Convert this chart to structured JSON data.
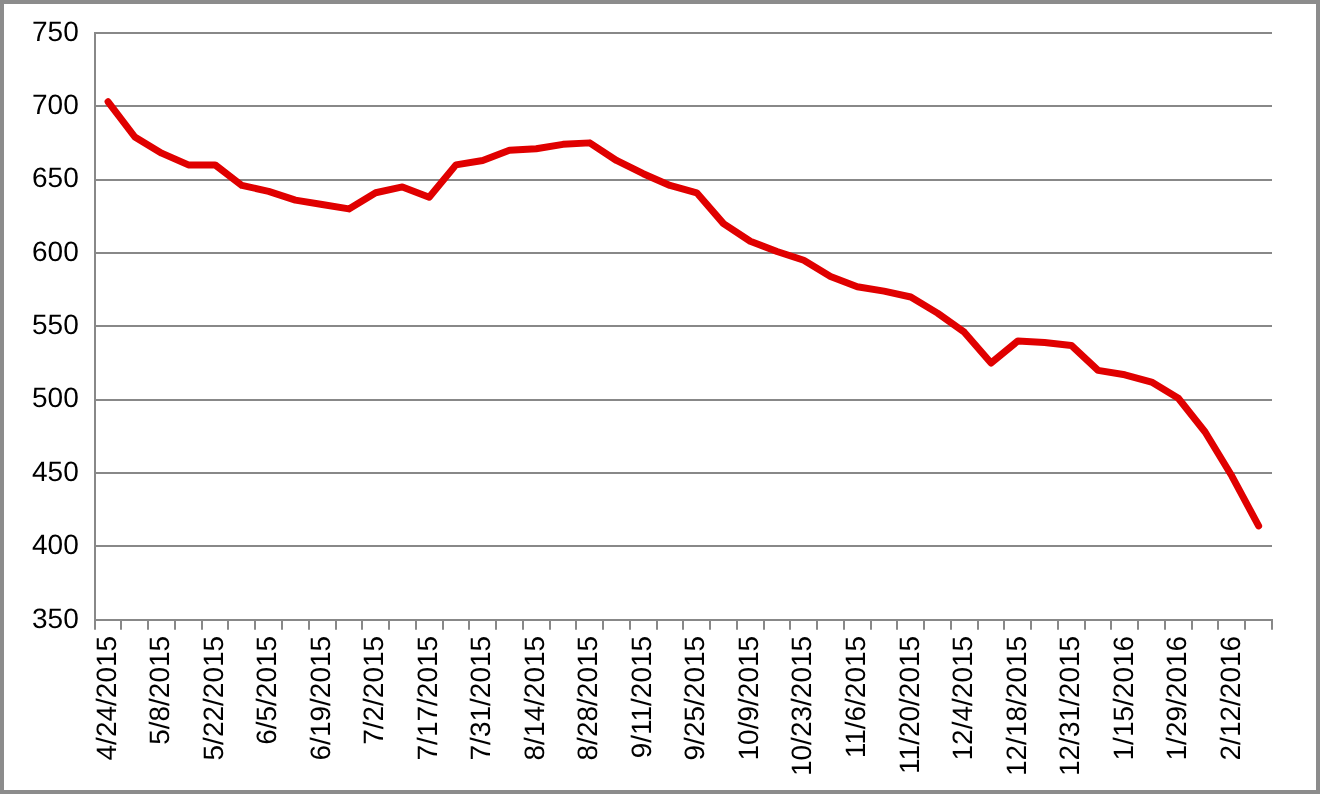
{
  "chart_data": {
    "type": "line",
    "categories": [
      "4/24/2015",
      null,
      "5/8/2015",
      null,
      "5/22/2015",
      null,
      "6/5/2015",
      null,
      "6/19/2015",
      null,
      "7/2/2015",
      null,
      "7/17/2015",
      null,
      "7/31/2015",
      null,
      "8/14/2015",
      null,
      "8/28/2015",
      null,
      "9/11/2015",
      null,
      "9/25/2015",
      null,
      "10/9/2015",
      null,
      "10/23/2015",
      null,
      "11/6/2015",
      null,
      "11/20/2015",
      null,
      "12/4/2015",
      null,
      "12/18/2015",
      null,
      "12/31/2015",
      null,
      "1/15/2016",
      null,
      "1/29/2016",
      null,
      "2/12/2016",
      null
    ],
    "series": [
      {
        "color": "#e00000",
        "values": [
          703,
          679,
          668,
          660,
          660,
          646,
          642,
          636,
          633,
          630,
          641,
          645,
          638,
          660,
          663,
          670,
          671,
          674,
          675,
          663,
          654,
          646,
          641,
          620,
          608,
          601,
          595,
          584,
          577,
          574,
          570,
          559,
          546,
          525,
          540,
          539,
          537,
          520,
          517,
          512,
          501,
          478,
          448,
          414
        ]
      }
    ],
    "ylim": [
      350,
      750
    ],
    "yticks": [
      350,
      400,
      450,
      500,
      550,
      600,
      650,
      700,
      750
    ],
    "grid": "y",
    "legend": false,
    "marker": "none",
    "line_style": "solid"
  }
}
